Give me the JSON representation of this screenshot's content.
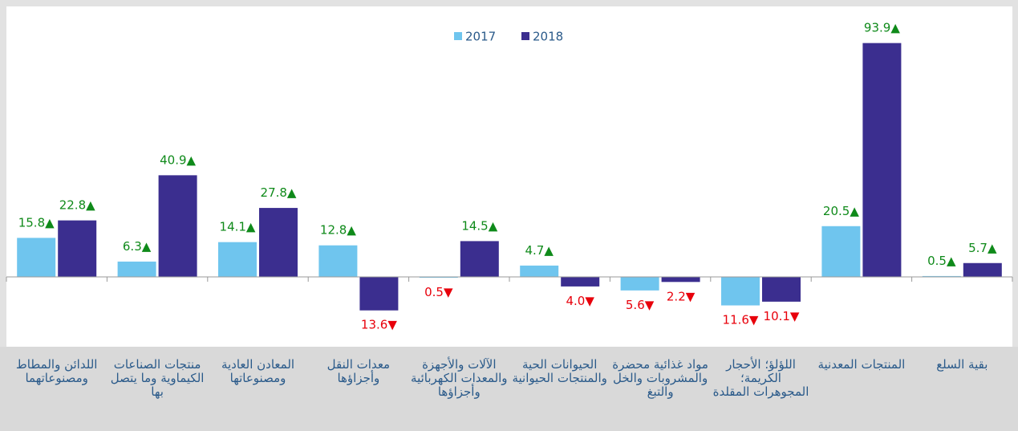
{
  "chart_data": {
    "type": "bar",
    "categories": [
      "اللدائن والمطاط ومصنوعاتهما",
      "منتجات الصناعات الكيماوية وما يتصل بها",
      "المعادن العادية ومصنوعاتها",
      "معدات النقل وأجزاؤها",
      "الآلات والأجهزة والمعدات الكهربائية وأجزاؤها",
      "الحيوانات الحية والمنتجات الحيوانية",
      "مواد غذائية محضرة والمشروبات والخل والتبغ",
      "اللؤلؤ؛ الأحجار الكريمة؛ المجوهرات المقلدة",
      "المنتجات المعدنية",
      "بقية السلع"
    ],
    "series": [
      {
        "name": "2017",
        "color": "#6fc5ee",
        "values": [
          15.8,
          6.3,
          14.1,
          12.8,
          -0.5,
          4.7,
          -5.6,
          -11.6,
          20.5,
          0.5
        ],
        "value_labels": [
          "15.8▲",
          "6.3▲",
          "14.1▲",
          "12.8▲",
          "0.5▼",
          "4.7▲",
          "5.6▼",
          "11.6▼",
          "20.5▲",
          "0.5▲"
        ]
      },
      {
        "name": "2018",
        "color": "#3b2e8f",
        "values": [
          22.8,
          40.9,
          27.8,
          -13.6,
          14.5,
          -4.0,
          -2.2,
          -10.1,
          93.9,
          5.7
        ],
        "value_labels": [
          "22.8▲",
          "40.9▲",
          "27.8▲",
          "13.6▼",
          "14.5▲",
          "4.0▼",
          "2.2▼",
          "10.1▼",
          "93.9▲",
          "5.7▲"
        ]
      }
    ],
    "ylim": [
      -28,
      111
    ],
    "positive_label_color": "#0f8a1a",
    "negative_label_color": "#e8000b",
    "legend": "top"
  }
}
